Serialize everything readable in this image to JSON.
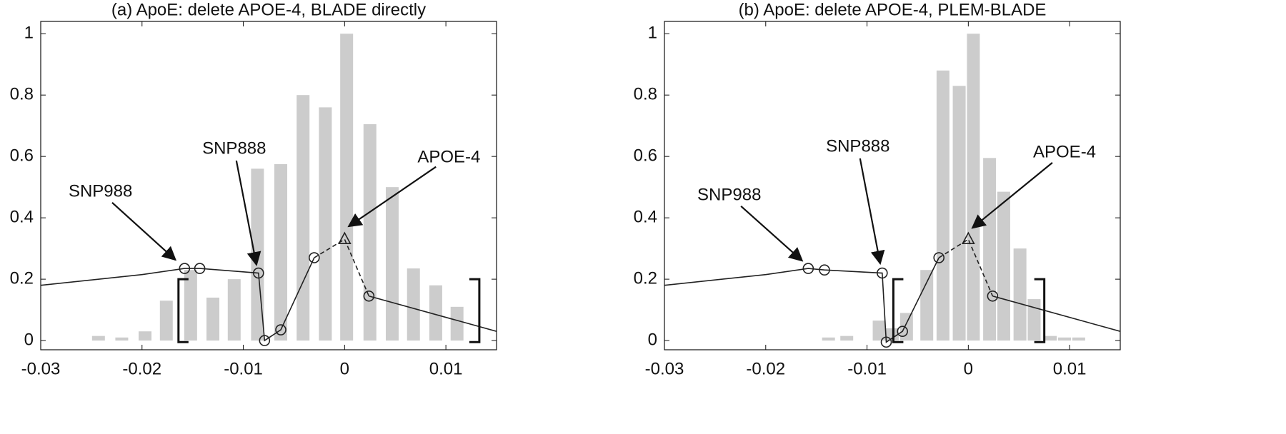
{
  "chart_data": [
    {
      "type": "bar",
      "title": "(a) ApoE: delete APOE-4, BLADE directly",
      "xlim": [
        -0.03,
        0.015
      ],
      "ylim": [
        -0.03,
        1.04
      ],
      "xticks": [
        -0.03,
        -0.02,
        -0.01,
        0,
        0.01
      ],
      "yticks": [
        0,
        0.2,
        0.4,
        0.6,
        0.8,
        1
      ],
      "bar_color": "#cccccc",
      "line_color": "#222222",
      "x": [
        -0.0243,
        -0.022,
        -0.0197,
        -0.0176,
        -0.0152,
        -0.013,
        -0.0109,
        -0.0086,
        -0.0063,
        -0.0041,
        -0.0019,
        0.0002,
        0.0025,
        0.0047,
        0.0068,
        0.009,
        0.0111
      ],
      "values": [
        0.015,
        0.01,
        0.03,
        0.13,
        0.23,
        0.14,
        0.2,
        0.56,
        0.575,
        0.8,
        0.76,
        1.0,
        0.705,
        0.5,
        0.235,
        0.18,
        0.11
      ],
      "series": [
        {
          "style": "solid",
          "x": [
            -0.03,
            -0.02,
            -0.0158,
            -0.0143,
            -0.0085,
            -0.0079,
            -0.0063,
            -0.003
          ],
          "values": [
            0.18,
            0.215,
            0.235,
            0.235,
            0.22,
            0.0,
            0.035,
            0.27
          ]
        },
        {
          "style": "dashed",
          "x": [
            -0.003,
            0,
            0.0024
          ],
          "values": [
            0.27,
            0.33,
            0.145
          ]
        },
        {
          "style": "solid",
          "x": [
            0.0024,
            0.015
          ],
          "values": [
            0.145,
            0.03
          ]
        }
      ],
      "points": {
        "x": [
          -0.0158,
          -0.0143,
          -0.0085,
          -0.0079,
          -0.0063,
          -0.003,
          0.0024
        ],
        "values": [
          0.235,
          0.235,
          0.22,
          0.0,
          0.035,
          0.27,
          0.145
        ]
      },
      "highlight": {
        "x": 0,
        "value": 0.33
      },
      "brackets": {
        "x": [
          -0.0164,
          0.0133
        ],
        "y": [
          -0.005,
          0.2
        ]
      },
      "annotations": [
        {
          "text": "SNP988",
          "x": -0.0241,
          "y": 0.484,
          "arrow_to": [
            -0.0167,
            0.263
          ]
        },
        {
          "text": "SNP888",
          "x": -0.0109,
          "y": 0.623,
          "arrow_to": [
            -0.0087,
            0.247
          ]
        },
        {
          "text": "APOE-4",
          "x": 0.0103,
          "y": 0.595,
          "arrow_to": [
            0.0004,
            0.372
          ]
        }
      ]
    },
    {
      "type": "bar",
      "title": "(b) ApoE: delete APOE-4, PLEM-BLADE",
      "xlim": [
        -0.03,
        0.015
      ],
      "ylim": [
        -0.03,
        1.04
      ],
      "xticks": [
        -0.03,
        -0.02,
        -0.01,
        0,
        0.01
      ],
      "yticks": [
        0,
        0.2,
        0.4,
        0.6,
        0.8,
        1
      ],
      "bar_color": "#cccccc",
      "line_color": "#222222",
      "x": [
        -0.0138,
        -0.012,
        -0.0088,
        -0.0075,
        -0.0061,
        -0.0041,
        -0.0025,
        -0.0009,
        0.0005,
        0.0021,
        0.0035,
        0.0051,
        0.0065,
        0.0081,
        0.0095,
        0.0109
      ],
      "values": [
        0.01,
        0.015,
        0.065,
        0.04,
        0.09,
        0.23,
        0.88,
        0.83,
        1.0,
        0.595,
        0.485,
        0.3,
        0.135,
        0.015,
        0.01,
        0.01
      ],
      "series": [
        {
          "style": "solid",
          "x": [
            -0.03,
            -0.02,
            -0.0158,
            -0.0142,
            -0.0085,
            -0.0081,
            -0.0065,
            -0.0029
          ],
          "values": [
            0.18,
            0.215,
            0.235,
            0.23,
            0.22,
            -0.005,
            0.03,
            0.27
          ]
        },
        {
          "style": "dashed",
          "x": [
            -0.0029,
            0,
            0.0024
          ],
          "values": [
            0.27,
            0.33,
            0.145
          ]
        },
        {
          "style": "solid",
          "x": [
            0.0024,
            0.015
          ],
          "values": [
            0.145,
            0.03
          ]
        }
      ],
      "points": {
        "x": [
          -0.0158,
          -0.0142,
          -0.0085,
          -0.0081,
          -0.0065,
          -0.0029,
          0.0024
        ],
        "values": [
          0.235,
          0.23,
          0.22,
          -0.005,
          0.03,
          0.27,
          0.145
        ]
      },
      "highlight": {
        "x": 0,
        "value": 0.33
      },
      "brackets": {
        "x": [
          -0.0074,
          0.0075
        ],
        "y": [
          -0.005,
          0.2
        ]
      },
      "annotations": [
        {
          "text": "SNP988",
          "x": -0.0236,
          "y": 0.472,
          "arrow_to": [
            -0.0164,
            0.26
          ]
        },
        {
          "text": "SNP888",
          "x": -0.0109,
          "y": 0.63,
          "arrow_to": [
            -0.0087,
            0.251
          ]
        },
        {
          "text": "APOE-4",
          "x": 0.0095,
          "y": 0.612,
          "arrow_to": [
            0.0004,
            0.367
          ]
        }
      ]
    }
  ]
}
